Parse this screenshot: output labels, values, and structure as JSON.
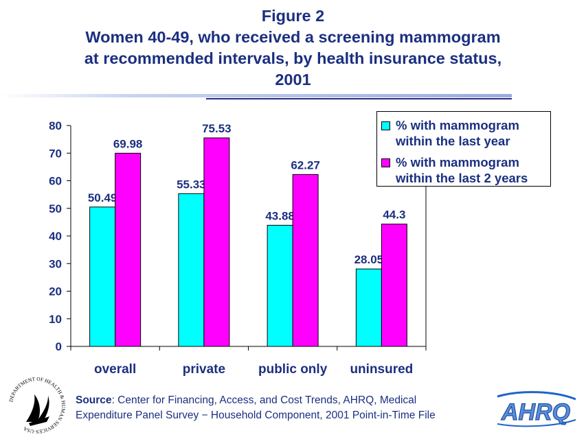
{
  "title": {
    "line1": "Figure 2",
    "line2": "Women 40-49, who received a screening mammogram",
    "line3": "at recommended intervals, by health insurance status,",
    "line4": "2001"
  },
  "source": {
    "label": "Source",
    "line1": ": Center for Financing, Access, and Cost Trends, AHRQ, Medical",
    "line2": "Expenditure Panel Survey − Household Component, 2001 Point-in-Time File"
  },
  "logos": {
    "hhs_seal_text": "DEPARTMENT OF HEALTH & HUMAN SERVICES·USA",
    "ahrq_text": "AHRQ"
  },
  "colors": {
    "title": "#1b2f80",
    "series1": "#00ffff",
    "series2": "#ff00ff",
    "axis": "#000000"
  },
  "chart_data": {
    "type": "bar",
    "categories": [
      "overall",
      "private",
      "public only",
      "uninsured"
    ],
    "series": [
      {
        "name": "% with mammogram\nwithin the last year",
        "values": [
          50.49,
          55.33,
          43.88,
          28.05
        ],
        "labels": [
          "50.49",
          "55.33",
          "43.88",
          "28.05"
        ]
      },
      {
        "name": "% with mammogram\nwithin the last 2 years",
        "values": [
          69.98,
          75.53,
          62.27,
          44.3
        ],
        "labels": [
          "69.98",
          "75.53",
          "62.27",
          "44.3"
        ]
      }
    ],
    "ylim": [
      0,
      80
    ],
    "yticks": [
      "0",
      "10",
      "20",
      "30",
      "40",
      "50",
      "60",
      "70",
      "80"
    ],
    "legend_position": "top-right",
    "grid": false
  }
}
